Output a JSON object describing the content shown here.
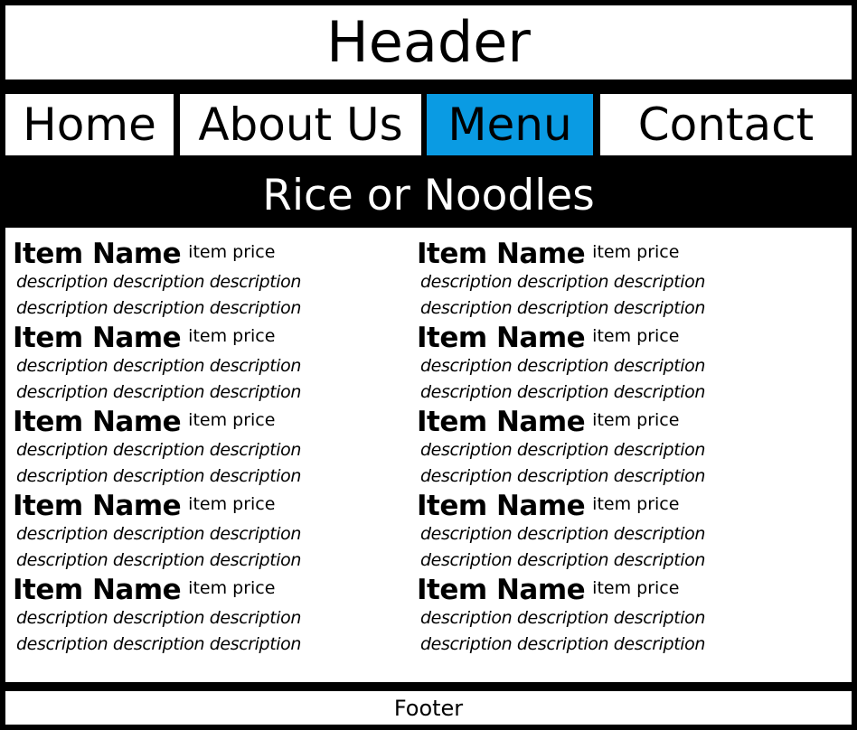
{
  "header": {
    "title": "Header"
  },
  "nav": {
    "items": [
      {
        "label": "Home"
      },
      {
        "label": "About Us"
      },
      {
        "label": "Menu"
      },
      {
        "label": "Contact"
      }
    ],
    "active_color": "#0a9be3"
  },
  "category": {
    "title": "Rice or Noodles"
  },
  "menu": {
    "left": [
      {
        "name": "Item Name",
        "price": "item price",
        "desc1": "description description description",
        "desc2": "description description description"
      },
      {
        "name": "Item Name",
        "price": "item price",
        "desc1": "description description description",
        "desc2": "description description description"
      },
      {
        "name": "Item Name",
        "price": "item price",
        "desc1": "description description description",
        "desc2": "description description description"
      },
      {
        "name": "Item Name",
        "price": "item price",
        "desc1": "description description description",
        "desc2": "description description description"
      },
      {
        "name": "Item Name",
        "price": "item price",
        "desc1": "description description description",
        "desc2": "description description description"
      }
    ],
    "right": [
      {
        "name": "Item Name",
        "price": "item price",
        "desc1": "description description description",
        "desc2": "description description description"
      },
      {
        "name": "Item Name",
        "price": "item price",
        "desc1": "description description description",
        "desc2": "description description description"
      },
      {
        "name": "Item Name",
        "price": "item price",
        "desc1": "description description description",
        "desc2": "description description description"
      },
      {
        "name": "Item Name",
        "price": "item price",
        "desc1": "description description description",
        "desc2": "description description description"
      },
      {
        "name": "Item Name",
        "price": "item price",
        "desc1": "description description description",
        "desc2": "description description description"
      }
    ]
  },
  "footer": {
    "text": "Footer"
  }
}
